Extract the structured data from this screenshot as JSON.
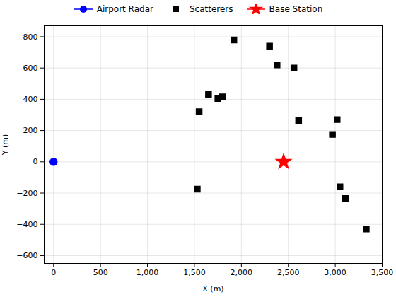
{
  "chart_data": {
    "type": "scatter",
    "xlabel": "X (m)",
    "ylabel": "Y (m)",
    "series": [
      {
        "name": "Airport Radar",
        "color": "#0000FF",
        "marker": "circle",
        "line_style": "solid",
        "x": [
          0
        ],
        "values": [
          0
        ]
      },
      {
        "name": "Scatterers",
        "color": "#000000",
        "marker": "square",
        "line_style": "none",
        "x": [
          1550,
          1650,
          1750,
          1800,
          1920,
          2300,
          2380,
          2560,
          2610,
          2970,
          3020,
          3050,
          3110,
          3330,
          1530
        ],
        "values": [
          320,
          430,
          405,
          415,
          780,
          740,
          620,
          600,
          265,
          175,
          270,
          -160,
          -235,
          -430,
          -175
        ]
      },
      {
        "name": "Base Station",
        "color": "#FF0000",
        "marker": "star",
        "line_style": "solid",
        "x": [
          2450
        ],
        "values": [
          0
        ]
      }
    ],
    "xlim": [
      -100,
      3500
    ],
    "ylim": [
      -650,
      870
    ],
    "xticks": [
      0,
      500,
      1000,
      1500,
      2000,
      2500,
      3000,
      3500
    ],
    "yticks": [
      -600,
      -400,
      -200,
      0,
      200,
      400,
      600,
      800
    ],
    "grid": true,
    "legend": "top"
  }
}
